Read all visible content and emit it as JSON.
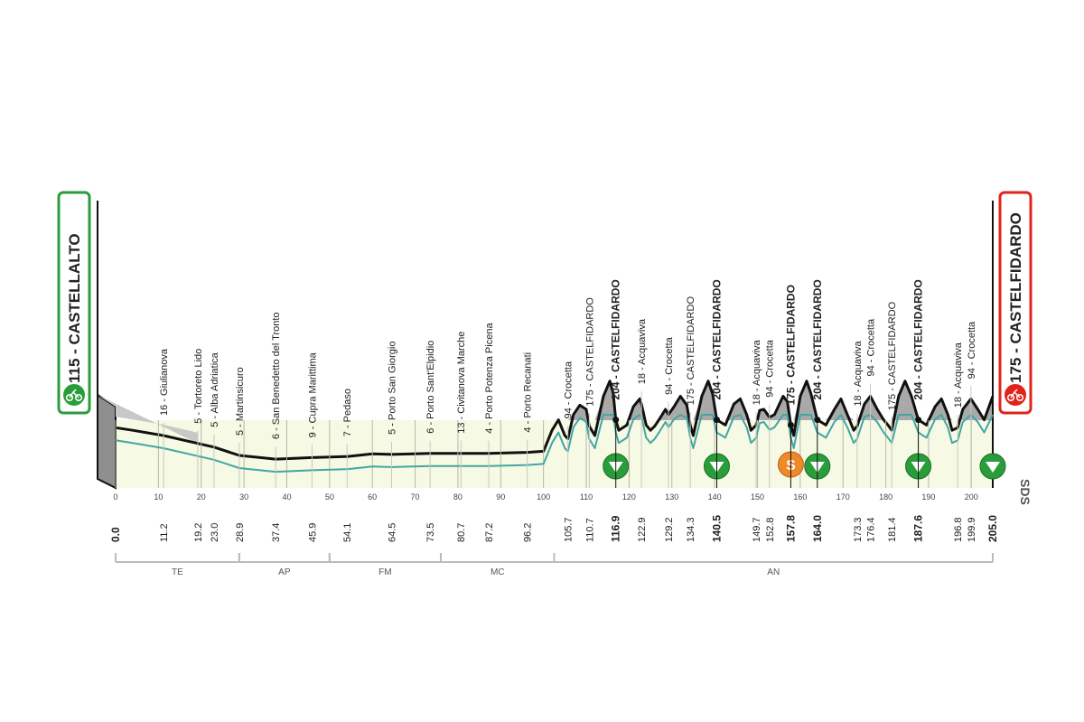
{
  "chart_data": {
    "type": "area",
    "title": "",
    "start": {
      "label": "115 - CASTELLALTO",
      "km": 0.0,
      "icon": "bike-icon",
      "color": "#2a9d3b"
    },
    "finish": {
      "label": "175 - CASTELFIDARDO",
      "km": 205.0,
      "icon": "bike-icon",
      "color": "#e2231a"
    },
    "x_range": [
      0,
      205
    ],
    "y_range": [
      0,
      250
    ],
    "distance_ticks": [
      0,
      10,
      20,
      30,
      40,
      50,
      60,
      70,
      80,
      90,
      100,
      110,
      120,
      130,
      140,
      150,
      160,
      170,
      180,
      190,
      200
    ],
    "profile": [
      [
        0,
        115
      ],
      [
        4,
        110
      ],
      [
        11.2,
        100
      ],
      [
        19.2,
        85
      ],
      [
        23,
        78
      ],
      [
        28.9,
        62
      ],
      [
        37.4,
        55
      ],
      [
        45.9,
        58
      ],
      [
        54.1,
        60
      ],
      [
        60,
        65
      ],
      [
        64.5,
        64
      ],
      [
        73.5,
        66
      ],
      [
        80.7,
        66
      ],
      [
        87.2,
        66
      ],
      [
        96.2,
        68
      ],
      [
        100,
        70
      ],
      [
        102,
        110
      ],
      [
        103.5,
        130
      ],
      [
        105,
        100
      ],
      [
        105.7,
        94
      ],
      [
        107,
        140
      ],
      [
        108.5,
        158
      ],
      [
        110,
        150
      ],
      [
        110.7,
        118
      ],
      [
        112,
        100
      ],
      [
        114,
        175
      ],
      [
        115.5,
        204
      ],
      [
        116.3,
        180
      ],
      [
        116.9,
        130
      ],
      [
        117.6,
        110
      ],
      [
        119.5,
        120
      ],
      [
        121,
        155
      ],
      [
        122.5,
        170
      ],
      [
        122.9,
        160
      ],
      [
        124,
        120
      ],
      [
        125,
        110
      ],
      [
        126,
        118
      ],
      [
        127,
        130
      ],
      [
        128.5,
        150
      ],
      [
        129.2,
        140
      ],
      [
        130.5,
        155
      ],
      [
        132,
        175
      ],
      [
        133.5,
        158
      ],
      [
        134.3,
        120
      ],
      [
        135,
        100
      ],
      [
        137,
        175
      ],
      [
        138.5,
        204
      ],
      [
        139.5,
        180
      ],
      [
        140.5,
        130
      ],
      [
        142.5,
        120
      ],
      [
        144.5,
        160
      ],
      [
        146,
        170
      ],
      [
        147.5,
        140
      ],
      [
        148.5,
        110
      ],
      [
        149.7,
        120
      ],
      [
        150.5,
        148
      ],
      [
        151.5,
        150
      ],
      [
        152.8,
        135
      ],
      [
        154,
        140
      ],
      [
        156,
        175
      ],
      [
        157,
        165
      ],
      [
        157.8,
        120
      ],
      [
        158.5,
        100
      ],
      [
        160,
        175
      ],
      [
        161.5,
        204
      ],
      [
        162.5,
        180
      ],
      [
        164.0,
        130
      ],
      [
        166,
        120
      ],
      [
        168,
        150
      ],
      [
        169.5,
        170
      ],
      [
        171,
        140
      ],
      [
        172.5,
        110
      ],
      [
        173.3,
        118
      ],
      [
        175,
        160
      ],
      [
        176.4,
        175
      ],
      [
        178,
        150
      ],
      [
        179.5,
        130
      ],
      [
        180.5,
        120
      ],
      [
        181.4,
        110
      ],
      [
        183,
        175
      ],
      [
        184.5,
        204
      ],
      [
        186,
        175
      ],
      [
        187.6,
        130
      ],
      [
        189.5,
        120
      ],
      [
        191.5,
        155
      ],
      [
        193,
        170
      ],
      [
        194.5,
        140
      ],
      [
        195.5,
        110
      ],
      [
        196.8,
        115
      ],
      [
        198,
        150
      ],
      [
        199.9,
        170
      ],
      [
        201.5,
        150
      ],
      [
        203,
        130
      ],
      [
        205,
        175
      ]
    ],
    "waypoints": [
      {
        "km": 11.2,
        "name": "16 - Giulianova",
        "km_label": "11.2"
      },
      {
        "km": 19.2,
        "name": "5 - Tortoreto Lido",
        "km_label": "19.2"
      },
      {
        "km": 23.0,
        "name": "5 - Alba Adriatica",
        "km_label": "23.0"
      },
      {
        "km": 28.9,
        "name": "5 - Martinsicuro",
        "km_label": "28.9"
      },
      {
        "km": 37.4,
        "name": "6 - San Benedetto del Tronto",
        "km_label": "37.4"
      },
      {
        "km": 45.9,
        "name": "9 - Cupra Marittima",
        "km_label": "45.9"
      },
      {
        "km": 54.1,
        "name": "7 - Pedaso",
        "km_label": "54.1"
      },
      {
        "km": 64.5,
        "name": "5 - Porto San Giorgio",
        "km_label": "64.5"
      },
      {
        "km": 73.5,
        "name": "6 - Porto Sant'Elpidio",
        "km_label": "73.5"
      },
      {
        "km": 80.7,
        "name": "13 - Civitanova Marche",
        "km_label": "80.7"
      },
      {
        "km": 87.2,
        "name": "4 - Porto Potenza Picena",
        "km_label": "87.2"
      },
      {
        "km": 96.2,
        "name": "4 - Porto Recanati",
        "km_label": "96.2"
      },
      {
        "km": 105.7,
        "name": "94 - Crocetta",
        "km_label": "105.7"
      },
      {
        "km": 110.7,
        "name": "175 - CASTELFIDARDO",
        "km_label": "110.7"
      },
      {
        "km": 116.9,
        "name": "204 - CASTELFIDARDO",
        "km_label": "116.9",
        "bold": true
      },
      {
        "km": 122.9,
        "name": "18 - Acquaviva",
        "km_label": "122.9"
      },
      {
        "km": 129.2,
        "name": "94 - Crocetta",
        "km_label": "129.2"
      },
      {
        "km": 134.3,
        "name": "175 - CASTELFIDARDO",
        "km_label": "134.3"
      },
      {
        "km": 140.5,
        "name": "204 - CASTELFIDARDO",
        "km_label": "140.5",
        "bold": true
      },
      {
        "km": 149.7,
        "name": "18 - Acquaviva",
        "km_label": "149.7"
      },
      {
        "km": 152.8,
        "name": "94 - Crocetta",
        "km_label": "152.8"
      },
      {
        "km": 157.8,
        "name": "175 - CASTELFIDARDO",
        "km_label": "157.8",
        "bold": true
      },
      {
        "km": 164.0,
        "name": "204 - CASTELFIDARDO",
        "km_label": "164.0",
        "bold": true
      },
      {
        "km": 173.3,
        "name": "18 - Acquaviva",
        "km_label": "173.3"
      },
      {
        "km": 176.4,
        "name": "94 - Crocetta",
        "km_label": "176.4"
      },
      {
        "km": 181.4,
        "name": "175 - CASTELFIDARDO",
        "km_label": "181.4"
      },
      {
        "km": 187.6,
        "name": "204 - CASTELFIDARDO",
        "km_label": "187.6",
        "bold": true
      },
      {
        "km": 196.8,
        "name": "18 - Acquaviva",
        "km_label": "196.8"
      },
      {
        "km": 199.9,
        "name": "94 - Crocetta",
        "km_label": "199.9"
      }
    ],
    "start_km_label": "0.0",
    "finish_km_label": "205.0",
    "descent_markers": [
      116.9,
      140.5,
      164.0,
      187.6,
      205.0
    ],
    "sprint_markers": [
      {
        "km": 157.8,
        "letter": "S"
      }
    ],
    "provinces": [
      {
        "code": "TE",
        "from": 0,
        "to": 28.9
      },
      {
        "code": "AP",
        "from": 28.9,
        "to": 50
      },
      {
        "code": "FM",
        "from": 50,
        "to": 76
      },
      {
        "code": "MC",
        "from": 76,
        "to": 102.5
      },
      {
        "code": "AN",
        "from": 102.5,
        "to": 205
      }
    ],
    "logo": "SDS",
    "colors": {
      "terrain": "#a9a9a9",
      "plain": "#f6f9e4",
      "road_line": "#43a6a5",
      "descent": "#2a9d3b",
      "sprint": "#ef8a2b"
    }
  }
}
